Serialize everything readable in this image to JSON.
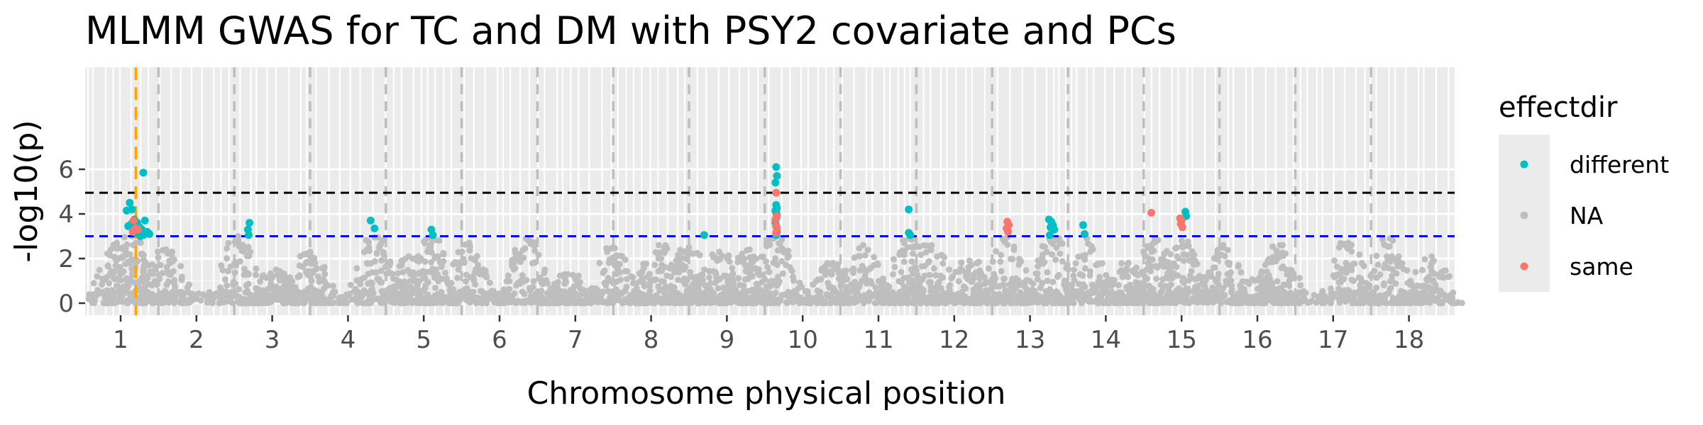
{
  "chart_data": {
    "type": "scatter",
    "title": "MLMM GWAS for TC and DM with PSY2 covariate and PCs",
    "xlabel": "Chromosome physical position",
    "ylabel": "-log10(p)",
    "ylim": [
      0,
      6.3
    ],
    "y_ticks": [
      0,
      2,
      4,
      6
    ],
    "x_ticks": [
      "1",
      "2",
      "3",
      "4",
      "5",
      "6",
      "7",
      "8",
      "9",
      "10",
      "11",
      "12",
      "13",
      "14",
      "15",
      "16",
      "17",
      "18"
    ],
    "x_scale": "chromosome index",
    "grid": true,
    "legend": {
      "title": "effectdir",
      "position": "right",
      "entries": [
        {
          "label": "different",
          "color": "#00bfc4"
        },
        {
          "label": "NA",
          "color": "#bebebe"
        },
        {
          "label": "same",
          "color": "#f8766d"
        }
      ]
    },
    "reference_lines": [
      {
        "axis": "y",
        "value": 4.95,
        "color": "#000000",
        "style": "dashed"
      },
      {
        "axis": "y",
        "value": 3.0,
        "color": "#0000ff",
        "style": "dashed"
      },
      {
        "axis": "x",
        "value": 1.2,
        "color": "#ffa500",
        "style": "dashed"
      }
    ],
    "series": [
      {
        "name": "different",
        "color": "#00bfc4",
        "points": [
          [
            1.08,
            4.15
          ],
          [
            1.12,
            4.5
          ],
          [
            1.15,
            4.2
          ],
          [
            1.1,
            3.45
          ],
          [
            1.18,
            3.75
          ],
          [
            1.22,
            3.6
          ],
          [
            1.25,
            3.4
          ],
          [
            1.28,
            3.3
          ],
          [
            1.2,
            3.15
          ],
          [
            1.3,
            3.05
          ],
          [
            1.35,
            3.2
          ],
          [
            1.32,
            3.7
          ],
          [
            1.26,
            3.0
          ],
          [
            1.14,
            3.55
          ],
          [
            1.38,
            3.1
          ],
          [
            1.3,
            5.85
          ],
          [
            2.7,
            3.6
          ],
          [
            2.68,
            3.3
          ],
          [
            2.69,
            3.05
          ],
          [
            4.3,
            3.7
          ],
          [
            4.35,
            3.35
          ],
          [
            5.1,
            3.3
          ],
          [
            5.12,
            3.05
          ],
          [
            8.7,
            3.05
          ],
          [
            9.65,
            6.1
          ],
          [
            9.66,
            5.7
          ],
          [
            9.64,
            5.4
          ],
          [
            9.65,
            4.4
          ],
          [
            9.66,
            4.25
          ],
          [
            9.64,
            4.15
          ],
          [
            9.65,
            4.05
          ],
          [
            9.66,
            3.95
          ],
          [
            9.65,
            3.8
          ],
          [
            9.64,
            3.6
          ],
          [
            9.66,
            3.2
          ],
          [
            9.65,
            3.05
          ],
          [
            11.4,
            4.2
          ],
          [
            11.4,
            3.15
          ],
          [
            11.42,
            3.05
          ],
          [
            13.25,
            3.75
          ],
          [
            13.28,
            3.65
          ],
          [
            13.3,
            3.5
          ],
          [
            13.27,
            3.4
          ],
          [
            13.32,
            3.3
          ],
          [
            13.26,
            3.05
          ],
          [
            13.7,
            3.5
          ],
          [
            13.72,
            3.1
          ],
          [
            15.05,
            4.1
          ],
          [
            15.06,
            3.9
          ]
        ]
      },
      {
        "name": "same",
        "color": "#f8766d",
        "points": [
          [
            1.17,
            3.7
          ],
          [
            1.2,
            3.35
          ],
          [
            1.23,
            3.3
          ],
          [
            1.16,
            3.2
          ],
          [
            9.65,
            4.95
          ],
          [
            9.66,
            3.9
          ],
          [
            9.64,
            3.75
          ],
          [
            9.65,
            3.45
          ],
          [
            9.66,
            3.35
          ],
          [
            9.65,
            3.15
          ],
          [
            12.7,
            3.65
          ],
          [
            12.72,
            3.5
          ],
          [
            12.69,
            3.35
          ],
          [
            12.71,
            3.2
          ],
          [
            14.6,
            4.05
          ],
          [
            14.98,
            3.8
          ],
          [
            15.0,
            3.7
          ],
          [
            14.99,
            3.55
          ],
          [
            15.01,
            3.4
          ]
        ]
      }
    ],
    "background_series": {
      "name": "NA",
      "color": "#bebebe",
      "peaks": [
        [
          0.95,
          2.7
        ],
        [
          1.15,
          3.0
        ],
        [
          1.6,
          2.4
        ],
        [
          2.55,
          3.0
        ],
        [
          3.05,
          1.5
        ],
        [
          3.5,
          2.3
        ],
        [
          4.35,
          2.95
        ],
        [
          4.8,
          2.1
        ],
        [
          5.1,
          2.9
        ],
        [
          5.6,
          2.7
        ],
        [
          6.35,
          2.9
        ],
        [
          6.9,
          1.3
        ],
        [
          7.5,
          2.5
        ],
        [
          8.1,
          2.6
        ],
        [
          8.5,
          2.5
        ],
        [
          8.9,
          2.3
        ],
        [
          9.3,
          2.4
        ],
        [
          9.65,
          3.0
        ],
        [
          10.4,
          1.8
        ],
        [
          10.8,
          2.6
        ],
        [
          11.4,
          2.9
        ],
        [
          11.7,
          2.6
        ],
        [
          12.2,
          1.9
        ],
        [
          12.7,
          2.95
        ],
        [
          13.3,
          2.95
        ],
        [
          13.75,
          2.9
        ],
        [
          14.3,
          1.8
        ],
        [
          14.65,
          2.9
        ],
        [
          15.0,
          2.8
        ],
        [
          15.55,
          2.6
        ],
        [
          16.05,
          1.3
        ],
        [
          16.3,
          2.6
        ],
        [
          17.2,
          2.7
        ],
        [
          17.75,
          2.9
        ],
        [
          18.3,
          2.1
        ]
      ]
    }
  }
}
